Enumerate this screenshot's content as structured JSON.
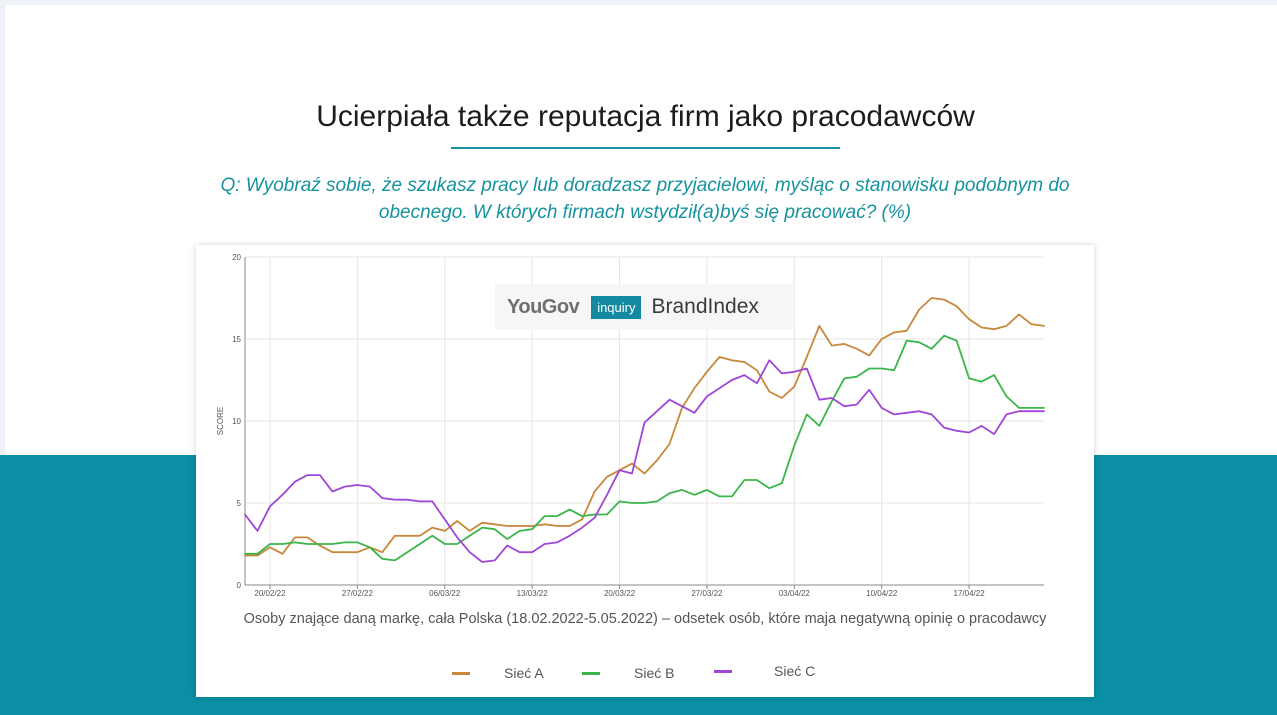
{
  "slide": {
    "title": "Ucierpiała także reputacja firm jako pracodawców",
    "question": "Q: Wyobraź sobie, że szukasz pracy lub doradzasz przyjacielowi, myśląc o stanowisku podobnym do obecnego. W których firmach  wstydził(a)byś się pracować?  (%)",
    "caption": "Osoby znające daną markę, cała Polska (18.02.2022-5.05.2022) – odsetek osób, które maja negatywną  opinię o pracodawcy",
    "logo": {
      "yougov": "YouGov",
      "inquiry": "inquiry",
      "brandindex": "BrandIndex"
    },
    "colors": {
      "teal": "#0a8fa4",
      "title_underline": "#1a8fa2",
      "question": "#16939f"
    }
  },
  "chart_data": {
    "type": "line",
    "title": "",
    "xlabel": "",
    "ylabel": "SCORE",
    "ylim": [
      0,
      20
    ],
    "yticks": [
      0,
      5,
      10,
      15,
      20
    ],
    "xlim": [
      "2022-02-18",
      "2022-04-23"
    ],
    "xticks": [
      "20/02/22",
      "27/02/22",
      "06/03/22",
      "13/03/22",
      "20/03/22",
      "27/03/22",
      "03/04/22",
      "10/04/22",
      "17/04/22"
    ],
    "grid": true,
    "legend_position": "bottom",
    "x": [
      "2022-02-18",
      "2022-02-19",
      "2022-02-20",
      "2022-02-21",
      "2022-02-22",
      "2022-02-23",
      "2022-02-24",
      "2022-02-25",
      "2022-02-26",
      "2022-02-27",
      "2022-02-28",
      "2022-03-01",
      "2022-03-02",
      "2022-03-03",
      "2022-03-04",
      "2022-03-05",
      "2022-03-06",
      "2022-03-07",
      "2022-03-08",
      "2022-03-09",
      "2022-03-10",
      "2022-03-11",
      "2022-03-12",
      "2022-03-13",
      "2022-03-14",
      "2022-03-15",
      "2022-03-16",
      "2022-03-17",
      "2022-03-18",
      "2022-03-19",
      "2022-03-20",
      "2022-03-21",
      "2022-03-22",
      "2022-03-23",
      "2022-03-24",
      "2022-03-25",
      "2022-03-26",
      "2022-03-27",
      "2022-03-28",
      "2022-03-29",
      "2022-03-30",
      "2022-03-31",
      "2022-04-01",
      "2022-04-02",
      "2022-04-03",
      "2022-04-04",
      "2022-04-05",
      "2022-04-06",
      "2022-04-07",
      "2022-04-08",
      "2022-04-09",
      "2022-04-10",
      "2022-04-11",
      "2022-04-12",
      "2022-04-13",
      "2022-04-14",
      "2022-04-15",
      "2022-04-16",
      "2022-04-17",
      "2022-04-18",
      "2022-04-19",
      "2022-04-20",
      "2022-04-21",
      "2022-04-22",
      "2022-04-23"
    ],
    "series": [
      {
        "name": "Sieć A",
        "color": "#c8883a",
        "values": [
          1.8,
          1.8,
          2.3,
          1.9,
          2.9,
          2.9,
          2.4,
          2.0,
          2.0,
          2.0,
          2.3,
          2.0,
          3.0,
          3.0,
          3.0,
          3.5,
          3.3,
          3.9,
          3.3,
          3.8,
          3.7,
          3.6,
          3.6,
          3.6,
          3.7,
          3.6,
          3.6,
          4.0,
          5.7,
          6.6,
          7.0,
          7.4,
          6.8,
          7.6,
          8.6,
          10.8,
          12.0,
          13.0,
          13.9,
          13.7,
          13.6,
          13.1,
          11.8,
          11.4,
          12.1,
          13.9,
          15.8,
          14.6,
          14.7,
          14.4,
          14.0,
          15.0,
          15.4,
          15.5,
          16.8,
          17.5,
          17.4,
          17.0,
          16.2,
          15.7,
          15.6,
          15.8,
          16.5,
          15.9,
          15.8
        ]
      },
      {
        "name": "Sieć B",
        "color": "#3bb54a",
        "values": [
          1.9,
          1.9,
          2.5,
          2.5,
          2.6,
          2.5,
          2.5,
          2.5,
          2.6,
          2.6,
          2.3,
          1.6,
          1.5,
          2.0,
          2.5,
          3.0,
          2.5,
          2.5,
          3.0,
          3.5,
          3.4,
          2.8,
          3.3,
          3.4,
          4.2,
          4.2,
          4.6,
          4.2,
          4.3,
          4.3,
          5.1,
          5.0,
          5.0,
          5.1,
          5.6,
          5.8,
          5.5,
          5.8,
          5.4,
          5.4,
          6.4,
          6.4,
          5.9,
          6.2,
          8.5,
          10.4,
          9.7,
          11.2,
          12.6,
          12.7,
          13.2,
          13.2,
          13.1,
          14.9,
          14.8,
          14.4,
          15.2,
          14.9,
          12.6,
          12.4,
          12.8,
          11.5,
          10.8,
          10.8,
          10.8
        ]
      },
      {
        "name": "Sieć C",
        "color": "#a046d6",
        "values": [
          4.3,
          3.3,
          4.8,
          5.5,
          6.3,
          6.7,
          6.7,
          5.7,
          6.0,
          6.1,
          6.0,
          5.3,
          5.2,
          5.2,
          5.1,
          5.1,
          4.0,
          2.9,
          2.0,
          1.4,
          1.5,
          2.4,
          2.0,
          2.0,
          2.5,
          2.6,
          3.0,
          3.5,
          4.1,
          5.5,
          7.0,
          6.8,
          9.9,
          10.6,
          11.3,
          10.9,
          10.5,
          11.5,
          12.0,
          12.5,
          12.8,
          12.3,
          13.7,
          12.9,
          13.0,
          13.2,
          11.3,
          11.4,
          10.9,
          11.0,
          11.9,
          10.8,
          10.4,
          10.5,
          10.6,
          10.4,
          9.6,
          9.4,
          9.3,
          9.7,
          9.2,
          10.4,
          10.6,
          10.6,
          10.6
        ]
      }
    ]
  }
}
